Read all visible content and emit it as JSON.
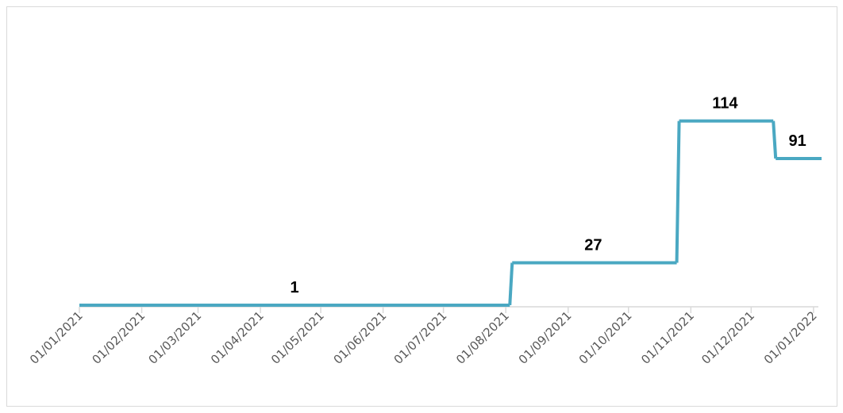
{
  "chart_data": {
    "type": "step",
    "x": [
      "01/01/2021",
      "03/08/2021",
      "25/10/2021",
      "12/12/2021"
    ],
    "series": [
      {
        "color": "#4aa8c2",
        "values": [
          1,
          27,
          114,
          91
        ]
      }
    ],
    "xlim": [
      "01/01/2021",
      "05/01/2022"
    ],
    "xticks": [
      "01/01/2021",
      "01/02/2021",
      "01/03/2021",
      "01/04/2021",
      "01/05/2021",
      "01/06/2021",
      "01/07/2021",
      "01/08/2021",
      "01/09/2021",
      "01/10/2021",
      "01/11/2021",
      "01/12/2021",
      "01/01/2022"
    ],
    "ylim": [
      0,
      180
    ]
  }
}
